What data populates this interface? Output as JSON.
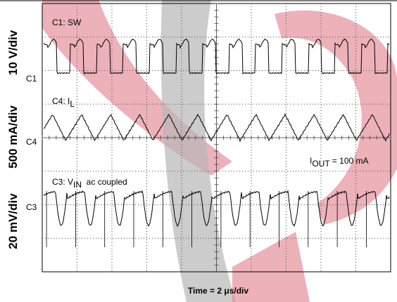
{
  "scales": [
    "10 V/div",
    "500 mA/div",
    "20 mV/div"
  ],
  "markers": [
    "C1",
    "C4",
    "C3"
  ],
  "labels": {
    "sw": "C1: SW",
    "il": {
      "prefix": "C4: I",
      "sub": "L"
    },
    "vin": {
      "prefix": "C3: V",
      "sub": "IN",
      "suffix": "  ac coupled"
    },
    "iout": {
      "prefix": "I",
      "sub": "OUT",
      "suffix": " = 100 mA"
    }
  },
  "x_axis_label": "Time = 2 μs/div"
}
